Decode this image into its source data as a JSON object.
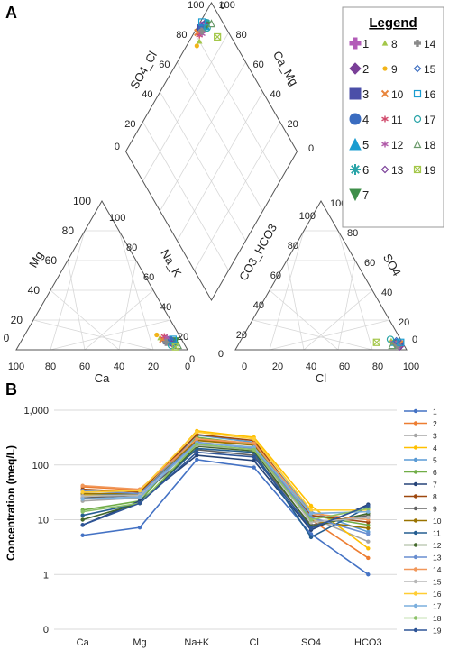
{
  "panels": {
    "a": "A",
    "b": "B"
  },
  "chart_data": [
    {
      "type": "scatter",
      "title": "",
      "plot": "piper",
      "grid": true,
      "legend_title": "Legend",
      "legend_placement": "top-right",
      "cation_triangle": {
        "left_axis": "Mg",
        "right_axis": "Na_K",
        "bottom_axis": "Ca",
        "left_ticks": [
          "20",
          "40",
          "60",
          "80",
          "100"
        ],
        "right_ticks": [
          "100",
          "80",
          "60",
          "40",
          "20"
        ],
        "bottom_ticks": [
          "100",
          "80",
          "60",
          "40",
          "20",
          "0"
        ],
        "left_zero": "0",
        "right_zero": "0"
      },
      "anion_triangle": {
        "left_axis": "CO3_HCO3",
        "right_axis": "SO4",
        "bottom_axis": "Cl",
        "left_ticks": [
          "100",
          "80",
          "60",
          "40",
          "20"
        ],
        "right_ticks": [
          "20",
          "40",
          "60",
          "80",
          "100"
        ],
        "bottom_ticks": [
          "0",
          "20",
          "40",
          "60",
          "80",
          "100"
        ],
        "left_zero": "0",
        "right_zero": "0"
      },
      "diamond": {
        "upper_left_axis": "SO4_Cl",
        "upper_right_axis": "Ca_Mg",
        "upper_left_ticks": [
          "100",
          "80",
          "60",
          "40",
          "20"
        ],
        "upper_right_ticks": [
          "100",
          "80",
          "60",
          "40",
          "20"
        ],
        "top_zero": "0",
        "left_zero": "0",
        "right_zero": "0"
      },
      "series": [
        {
          "name": "1",
          "marker": "plus",
          "color": "#b35cb8",
          "cation": {
            "Ca": 8,
            "Mg": 5,
            "NaK": 87
          },
          "anion": {
            "Cl": 95,
            "SO4": 3,
            "HCO3": 2
          }
        },
        {
          "name": "2",
          "marker": "diamond",
          "color": "#7a3f98",
          "cation": {
            "Ca": 10,
            "Mg": 6,
            "NaK": 84
          },
          "anion": {
            "Cl": 93,
            "SO4": 4,
            "HCO3": 3
          }
        },
        {
          "name": "3",
          "marker": "square",
          "color": "#4b4fa8",
          "cation": {
            "Ca": 9,
            "Mg": 6,
            "NaK": 85
          },
          "anion": {
            "Cl": 94,
            "SO4": 4,
            "HCO3": 2
          }
        },
        {
          "name": "4",
          "marker": "circle",
          "color": "#3a6cc0",
          "cation": {
            "Ca": 7,
            "Mg": 7,
            "NaK": 86
          },
          "anion": {
            "Cl": 92,
            "SO4": 5,
            "HCO3": 3
          }
        },
        {
          "name": "5",
          "marker": "triangle",
          "color": "#1a9cd0",
          "cation": {
            "Ca": 6,
            "Mg": 5,
            "NaK": 89
          },
          "anion": {
            "Cl": 90,
            "SO4": 5,
            "HCO3": 5
          }
        },
        {
          "name": "6",
          "marker": "star",
          "color": "#2aa4a8",
          "cation": {
            "Ca": 5,
            "Mg": 4,
            "NaK": 91
          },
          "anion": {
            "Cl": 93,
            "SO4": 3,
            "HCO3": 4
          }
        },
        {
          "name": "7",
          "marker": "tri-down",
          "color": "#3f8f4a",
          "cation": {
            "Ca": 4,
            "Mg": 6,
            "NaK": 90
          },
          "anion": {
            "Cl": 91,
            "SO4": 4,
            "HCO3": 5
          }
        },
        {
          "name": "8",
          "marker": "small-triangle",
          "color": "#a4c74a",
          "cation": {
            "Ca": 12,
            "Mg": 8,
            "NaK": 80
          },
          "anion": {
            "Cl": 88,
            "SO4": 6,
            "HCO3": 6
          }
        },
        {
          "name": "9",
          "marker": "small-circle",
          "color": "#f2b418",
          "cation": {
            "Ca": 13,
            "Mg": 10,
            "NaK": 77
          },
          "anion": {
            "Cl": 89,
            "SO4": 5,
            "HCO3": 6
          }
        },
        {
          "name": "10",
          "marker": "x",
          "color": "#e8853c",
          "cation": {
            "Ca": 11,
            "Mg": 7,
            "NaK": 82
          },
          "anion": {
            "Cl": 94,
            "SO4": 4,
            "HCO3": 2
          }
        },
        {
          "name": "11",
          "marker": "asterisk",
          "color": "#d0486a",
          "cation": {
            "Ca": 9,
            "Mg": 9,
            "NaK": 82
          },
          "anion": {
            "Cl": 92,
            "SO4": 4,
            "HCO3": 4
          }
        },
        {
          "name": "12",
          "marker": "asterisk",
          "color": "#b05aa8",
          "cation": {
            "Ca": 8,
            "Mg": 8,
            "NaK": 84
          },
          "anion": {
            "Cl": 90,
            "SO4": 5,
            "HCO3": 5
          }
        },
        {
          "name": "13",
          "marker": "diamond-open",
          "color": "#7a3f98",
          "cation": {
            "Ca": 7,
            "Mg": 4,
            "NaK": 89
          },
          "anion": {
            "Cl": 95,
            "SO4": 2,
            "HCO3": 3
          }
        },
        {
          "name": "14",
          "marker": "plus",
          "color": "#8a8a8a",
          "cation": {
            "Ca": 10,
            "Mg": 5,
            "NaK": 85
          },
          "anion": {
            "Cl": 93,
            "SO4": 3,
            "HCO3": 4
          }
        },
        {
          "name": "15",
          "marker": "diamond-open",
          "color": "#3a6cc0",
          "cation": {
            "Ca": 6,
            "Mg": 6,
            "NaK": 88
          },
          "anion": {
            "Cl": 91,
            "SO4": 6,
            "HCO3": 3
          }
        },
        {
          "name": "16",
          "marker": "square-open",
          "color": "#1a9cd0",
          "cation": {
            "Ca": 5,
            "Mg": 7,
            "NaK": 88
          },
          "anion": {
            "Cl": 94,
            "SO4": 5,
            "HCO3": 1
          }
        },
        {
          "name": "17",
          "marker": "circle-open",
          "color": "#2aa4a8",
          "cation": {
            "Ca": 8,
            "Mg": 3,
            "NaK": 89
          },
          "anion": {
            "Cl": 87,
            "SO4": 7,
            "HCO3": 6
          }
        },
        {
          "name": "18",
          "marker": "triangle-open",
          "color": "#6a9a6a",
          "cation": {
            "Ca": 4,
            "Mg": 3,
            "NaK": 93
          },
          "anion": {
            "Cl": 90,
            "SO4": 3,
            "HCO3": 7
          }
        },
        {
          "name": "19",
          "marker": "square-x",
          "color": "#a4c74a",
          "cation": {
            "Ca": 6,
            "Mg": 2,
            "NaK": 92
          },
          "anion": {
            "Cl": 80,
            "SO4": 5,
            "HCO3": 15
          }
        }
      ]
    },
    {
      "type": "line",
      "title": "",
      "ylabel": "Concentration (meq/L)",
      "xlabel": "",
      "yscale": "log",
      "grid": true,
      "legend_placement": "right",
      "categories": [
        "Ca",
        "Mg",
        "Na+K",
        "Cl",
        "SO4",
        "HCO3"
      ],
      "y_ticks": [
        {
          "label": "0",
          "value": 0.1
        },
        {
          "label": "1",
          "value": 1
        },
        {
          "label": "10",
          "value": 10
        },
        {
          "label": "100",
          "value": 100
        },
        {
          "label": "1,000",
          "value": 1000
        }
      ],
      "ylim": [
        0.1,
        1000
      ],
      "series": [
        {
          "name": "1",
          "color": "#4472c4",
          "values": [
            5.2,
            7.2,
            125,
            90,
            5.5,
            1.0
          ]
        },
        {
          "name": "2",
          "color": "#ed7d31",
          "values": [
            40,
            35,
            290,
            240,
            10,
            2.0
          ]
        },
        {
          "name": "3",
          "color": "#a5a5a5",
          "values": [
            22,
            25,
            260,
            210,
            11,
            4.0
          ]
        },
        {
          "name": "4",
          "color": "#ffc000",
          "values": [
            28,
            30,
            420,
            320,
            18,
            3.0
          ]
        },
        {
          "name": "5",
          "color": "#5b9bd5",
          "values": [
            30,
            28,
            350,
            260,
            14,
            6.0
          ]
        },
        {
          "name": "6",
          "color": "#70ad47",
          "values": [
            15,
            22,
            320,
            240,
            12,
            8.0
          ]
        },
        {
          "name": "7",
          "color": "#264478",
          "values": [
            8,
            22,
            150,
            120,
            6.5,
            19
          ]
        },
        {
          "name": "8",
          "color": "#9e480e",
          "values": [
            36,
            32,
            360,
            280,
            12,
            9.0
          ]
        },
        {
          "name": "9",
          "color": "#636363",
          "values": [
            25,
            28,
            190,
            150,
            8.0,
            12
          ]
        },
        {
          "name": "10",
          "color": "#997300",
          "values": [
            30,
            30,
            280,
            230,
            9.5,
            7.0
          ]
        },
        {
          "name": "11",
          "color": "#255e91",
          "values": [
            12,
            20,
            200,
            170,
            4.8,
            17
          ]
        },
        {
          "name": "12",
          "color": "#43682b",
          "values": [
            10,
            20,
            220,
            180,
            7.5,
            13
          ]
        },
        {
          "name": "13",
          "color": "#698ed0",
          "values": [
            34,
            30,
            260,
            200,
            11,
            5.5
          ]
        },
        {
          "name": "14",
          "color": "#f1975a",
          "values": [
            42,
            36,
            300,
            250,
            13,
            10
          ]
        },
        {
          "name": "15",
          "color": "#b7b7b7",
          "values": [
            27,
            28,
            230,
            190,
            9.0,
            11
          ]
        },
        {
          "name": "16",
          "color": "#ffcd33",
          "values": [
            32,
            34,
            400,
            300,
            15,
            15
          ]
        },
        {
          "name": "17",
          "color": "#7cafdd",
          "values": [
            24,
            26,
            250,
            210,
            13,
            14
          ]
        },
        {
          "name": "18",
          "color": "#8cc168",
          "values": [
            14,
            20,
            240,
            190,
            10,
            16
          ]
        },
        {
          "name": "19",
          "color": "#2e5597",
          "values": [
            8,
            20,
            170,
            140,
            7.0,
            18
          ]
        }
      ]
    }
  ]
}
